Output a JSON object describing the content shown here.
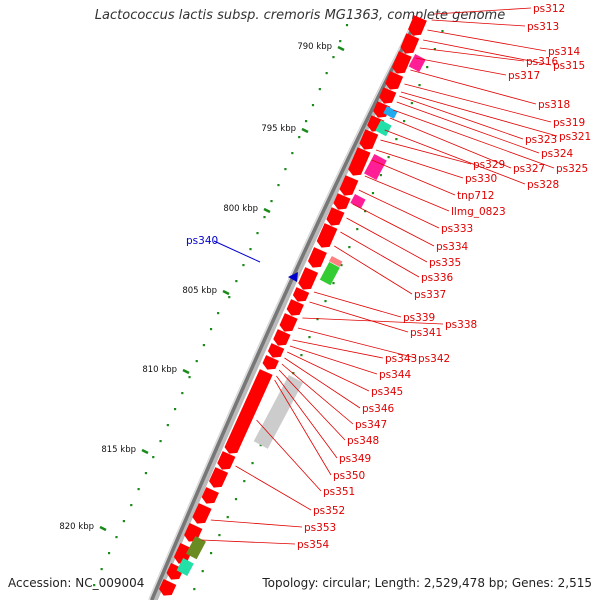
{
  "title": "Lactococcus lactis subsp. cremoris MG1363, complete genome",
  "footer": {
    "accession": "Accession: NC_009004",
    "topology": "Topology: circular; Length: 2,529,478 bp; Genes: 2,515"
  },
  "kbp_labels": [
    "790 kbp",
    "795 kbp",
    "800 kbp",
    "805 kbp",
    "810 kbp",
    "815 kbp",
    "820 kbp"
  ],
  "highlight_label": "ps340",
  "gene_labels": [
    "ps312",
    "ps313",
    "ps314",
    "ps315",
    "ps316",
    "ps317",
    "ps318",
    "ps319",
    "ps321",
    "ps323",
    "ps324",
    "ps325",
    "ps327",
    "ps328",
    "ps329",
    "ps330",
    "tnp712",
    "llmg_0823",
    "ps333",
    "ps334",
    "ps335",
    "ps336",
    "ps337",
    "ps338",
    "ps339",
    "ps341",
    "ps342",
    "ps343",
    "ps344",
    "ps345",
    "ps346",
    "ps347",
    "ps348",
    "ps349",
    "ps350",
    "ps351",
    "ps352",
    "ps353",
    "ps354"
  ],
  "colors": {
    "gene": "#ff0000",
    "label": "#e00000",
    "highlight": "#0000cc",
    "tick": "#1a8a1a",
    "backbone": "#888888",
    "pink": "#ff1e96",
    "cyan": "#22aaee",
    "teal": "#22e0a8",
    "green": "#33cc33",
    "olive": "#6a8a22",
    "gray": "#cccccc"
  }
}
